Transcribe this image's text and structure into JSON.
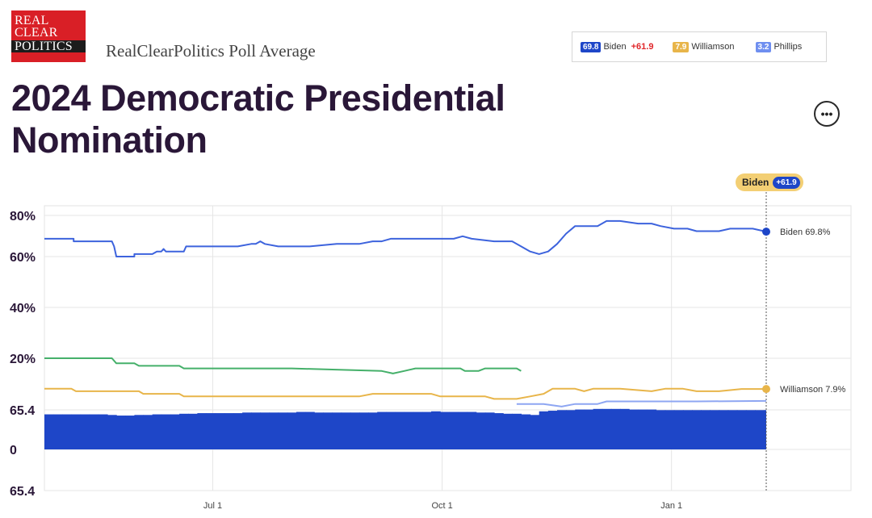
{
  "brand": {
    "logo_lines": [
      "REAL",
      "CLEAR",
      "POLITICS"
    ],
    "subtitle": "RealClearPolitics Poll Average"
  },
  "page_title": "2024 Democratic Presidential Nomination",
  "more_button": "•••",
  "legend": [
    {
      "value": "69.8",
      "name": "Biden",
      "spread": "+61.9",
      "color": "#1e46c8"
    },
    {
      "value": "7.9",
      "name": "Williamson",
      "spread": "",
      "color": "#e8b54a"
    },
    {
      "value": "3.2",
      "name": "Phillips",
      "spread": "",
      "color": "#6f8ff0"
    }
  ],
  "lead_pill": {
    "name": "Biden",
    "spread": "+61.9"
  },
  "chart_data": {
    "type": "line",
    "y_ticks": [
      "80%",
      "60%",
      "40%",
      "20%",
      "65.4",
      "0",
      "65.4"
    ],
    "x_ticks": [
      "Jul 1",
      "Oct 1",
      "Jan 1"
    ],
    "ylim": [
      0,
      80
    ],
    "series": [
      {
        "name": "Biden",
        "color": "#3d63dd",
        "end_label": "Biden 69.8%",
        "points": [
          [
            0,
            67
          ],
          [
            13,
            67
          ],
          [
            13,
            66
          ],
          [
            30,
            66
          ],
          [
            31,
            64
          ],
          [
            32,
            60
          ],
          [
            40,
            60
          ],
          [
            40,
            61
          ],
          [
            48,
            61
          ],
          [
            50,
            62
          ],
          [
            52,
            62
          ],
          [
            53,
            63
          ],
          [
            54,
            62
          ],
          [
            62,
            62
          ],
          [
            63,
            64
          ],
          [
            86,
            64
          ],
          [
            92,
            65
          ],
          [
            94,
            65
          ],
          [
            96,
            66
          ],
          [
            98,
            65
          ],
          [
            104,
            64
          ],
          [
            118,
            64
          ],
          [
            130,
            65
          ],
          [
            140,
            65
          ],
          [
            146,
            66
          ],
          [
            150,
            66
          ],
          [
            154,
            67
          ],
          [
            170,
            67
          ],
          [
            182,
            67
          ],
          [
            186,
            68
          ],
          [
            190,
            67
          ],
          [
            200,
            66
          ],
          [
            208,
            66
          ],
          [
            212,
            64
          ],
          [
            216,
            62
          ],
          [
            220,
            61
          ],
          [
            224,
            62
          ],
          [
            228,
            65
          ],
          [
            232,
            69
          ],
          [
            236,
            72
          ],
          [
            246,
            72
          ],
          [
            250,
            74
          ],
          [
            256,
            74
          ],
          [
            264,
            73
          ],
          [
            270,
            73
          ],
          [
            274,
            72
          ],
          [
            280,
            71
          ],
          [
            286,
            71
          ],
          [
            290,
            70
          ],
          [
            300,
            70
          ],
          [
            305,
            71
          ],
          [
            315,
            71
          ],
          [
            321,
            69.8
          ]
        ]
      },
      {
        "name": "",
        "color": "#45b06a",
        "end_label": "",
        "points": [
          [
            0,
            20
          ],
          [
            30,
            20
          ],
          [
            32,
            18
          ],
          [
            40,
            18
          ],
          [
            42,
            17
          ],
          [
            60,
            17
          ],
          [
            62,
            16
          ],
          [
            80,
            16
          ],
          [
            82,
            16
          ],
          [
            100,
            16
          ],
          [
            110,
            16
          ],
          [
            150,
            15
          ],
          [
            155,
            14
          ],
          [
            160,
            15
          ],
          [
            165,
            16
          ],
          [
            170,
            16
          ],
          [
            175,
            16
          ],
          [
            185,
            16
          ],
          [
            187,
            15
          ],
          [
            193,
            15
          ],
          [
            196,
            16
          ],
          [
            203,
            16
          ],
          [
            208,
            16
          ],
          [
            210,
            16
          ],
          [
            212,
            15
          ]
        ]
      },
      {
        "name": "Williamson",
        "color": "#e8b54a",
        "end_label": "Williamson 7.9%",
        "points": [
          [
            0,
            8
          ],
          [
            12,
            8
          ],
          [
            14,
            7
          ],
          [
            42,
            7
          ],
          [
            44,
            6
          ],
          [
            60,
            6
          ],
          [
            62,
            5
          ],
          [
            84,
            5
          ],
          [
            92,
            5
          ],
          [
            110,
            5
          ],
          [
            140,
            5
          ],
          [
            146,
            6
          ],
          [
            158,
            6
          ],
          [
            172,
            6
          ],
          [
            176,
            5
          ],
          [
            196,
            5
          ],
          [
            200,
            4
          ],
          [
            210,
            4
          ],
          [
            216,
            5
          ],
          [
            222,
            6
          ],
          [
            226,
            8
          ],
          [
            236,
            8
          ],
          [
            240,
            7
          ],
          [
            244,
            8
          ],
          [
            256,
            8
          ],
          [
            270,
            7
          ],
          [
            276,
            8
          ],
          [
            284,
            8
          ],
          [
            290,
            7
          ],
          [
            300,
            7
          ],
          [
            310,
            7.9
          ],
          [
            321,
            7.9
          ]
        ]
      },
      {
        "name": "Phillips",
        "color": "#8ea6f2",
        "end_label": "",
        "points": [
          [
            210,
            2
          ],
          [
            222,
            2
          ],
          [
            230,
            1
          ],
          [
            236,
            2
          ],
          [
            246,
            2
          ],
          [
            250,
            3
          ],
          [
            262,
            3
          ],
          [
            290,
            3
          ],
          [
            321,
            3.2
          ]
        ]
      }
    ],
    "bars": {
      "name": "Biden spread",
      "color": "#1e46c8",
      "values": [
        [
          0,
          58
        ],
        [
          4,
          58
        ],
        [
          8,
          58
        ],
        [
          12,
          58
        ],
        [
          16,
          58
        ],
        [
          20,
          58
        ],
        [
          24,
          58
        ],
        [
          28,
          57
        ],
        [
          32,
          56
        ],
        [
          36,
          56
        ],
        [
          40,
          57
        ],
        [
          44,
          57
        ],
        [
          48,
          58
        ],
        [
          52,
          58
        ],
        [
          56,
          58
        ],
        [
          60,
          59
        ],
        [
          64,
          59
        ],
        [
          68,
          60
        ],
        [
          72,
          60
        ],
        [
          76,
          60
        ],
        [
          80,
          60
        ],
        [
          84,
          60
        ],
        [
          88,
          61
        ],
        [
          92,
          61
        ],
        [
          96,
          61
        ],
        [
          100,
          61
        ],
        [
          104,
          61
        ],
        [
          108,
          61
        ],
        [
          112,
          62
        ],
        [
          116,
          62
        ],
        [
          120,
          61
        ],
        [
          124,
          61
        ],
        [
          128,
          61
        ],
        [
          132,
          61
        ],
        [
          136,
          61
        ],
        [
          140,
          61
        ],
        [
          144,
          61
        ],
        [
          148,
          62
        ],
        [
          152,
          62
        ],
        [
          156,
          62
        ],
        [
          160,
          62
        ],
        [
          164,
          62
        ],
        [
          168,
          62
        ],
        [
          172,
          63
        ],
        [
          176,
          62
        ],
        [
          180,
          62
        ],
        [
          184,
          62
        ],
        [
          188,
          62
        ],
        [
          192,
          61
        ],
        [
          196,
          61
        ],
        [
          200,
          60
        ],
        [
          204,
          59
        ],
        [
          208,
          59
        ],
        [
          212,
          58
        ],
        [
          216,
          57
        ],
        [
          220,
          63
        ],
        [
          224,
          64
        ],
        [
          228,
          65
        ],
        [
          232,
          65
        ],
        [
          236,
          66
        ],
        [
          240,
          66
        ],
        [
          244,
          67
        ],
        [
          248,
          67
        ],
        [
          252,
          67
        ],
        [
          256,
          67
        ],
        [
          260,
          66
        ],
        [
          264,
          66
        ],
        [
          268,
          66
        ],
        [
          272,
          65
        ],
        [
          276,
          65
        ],
        [
          280,
          65
        ],
        [
          284,
          65
        ],
        [
          288,
          65
        ],
        [
          292,
          65
        ],
        [
          296,
          65
        ],
        [
          300,
          65
        ],
        [
          304,
          65
        ],
        [
          308,
          65
        ],
        [
          312,
          65
        ],
        [
          316,
          65
        ],
        [
          320,
          65
        ]
      ]
    },
    "marker_x": 321,
    "x_tick_positions": [
      72,
      174,
      276
    ],
    "x_range": [
      0,
      321
    ]
  }
}
